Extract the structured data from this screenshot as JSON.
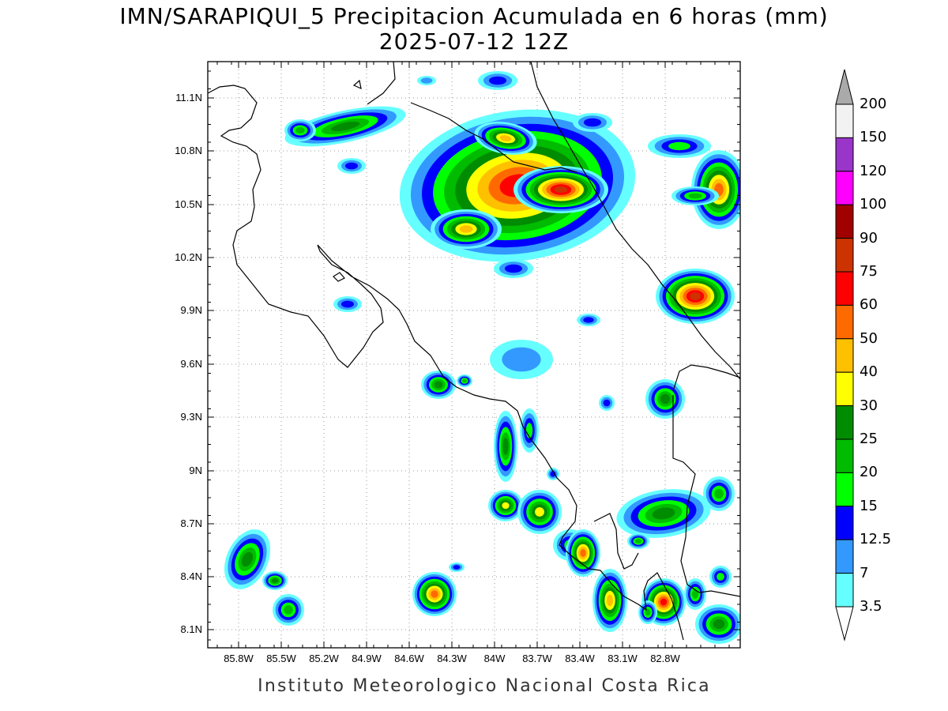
{
  "title_line1": "IMN/SARAPIQUI_5 Precipitacion Acumulada en 6 horas (mm)",
  "title_line2": "2025-07-12 12Z",
  "footer": "Instituto Meteorologico Nacional Costa Rica",
  "lat_ticks": [
    "11.1N",
    "10.8N",
    "10.5N",
    "10.2N",
    "9.9N",
    "9.6N",
    "9.3N",
    "9N",
    "8.7N",
    "8.4N",
    "8.1N"
  ],
  "lon_ticks": [
    "85.8W",
    "85.5W",
    "85.2W",
    "84.9W",
    "84.6W",
    "84.3W",
    "84W",
    "83.7W",
    "83.4W",
    "83.1W",
    "82.8W"
  ],
  "colorbar": {
    "labels": [
      "200",
      "150",
      "120",
      "100",
      "90",
      "75",
      "60",
      "50",
      "40",
      "30",
      "25",
      "20",
      "15",
      "12.5",
      "7",
      "3.5"
    ],
    "colors": [
      "#f2f2f2",
      "#9a35c9",
      "#ff00ff",
      "#a00000",
      "#cc3300",
      "#ff0000",
      "#ff6a00",
      "#ffc000",
      "#ffff00",
      "#008c00",
      "#00bb00",
      "#00ff00",
      "#0000ff",
      "#3399ff",
      "#66ffff"
    ],
    "over_color": "#aaaaaa",
    "under_color": "#ffffff"
  },
  "level_colors": [
    "#66ffff",
    "#3399ff",
    "#0000ff",
    "#00ff00",
    "#00bb00",
    "#008c00",
    "#ffff00",
    "#ffc000",
    "#ff6a00",
    "#ff0000",
    "#cc3300",
    "#a00000"
  ]
}
